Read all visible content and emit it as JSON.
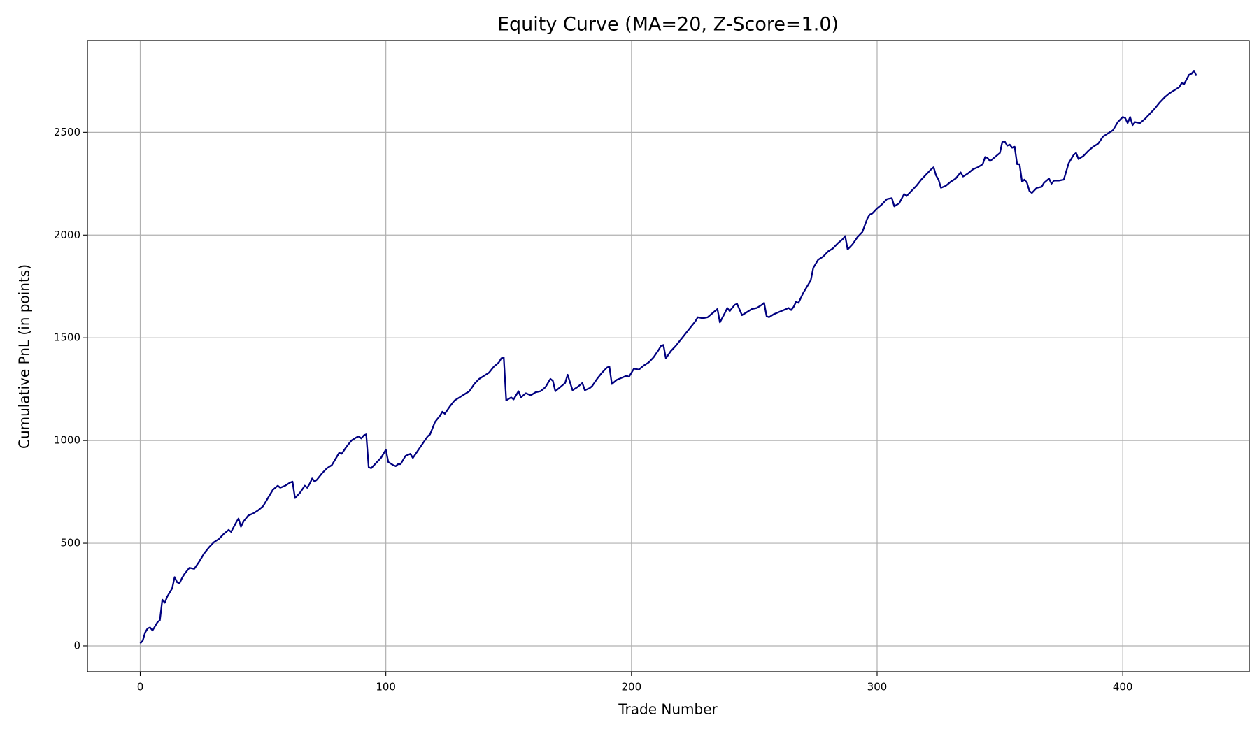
{
  "chart_data": {
    "type": "line",
    "title": "Equity Curve (MA=20, Z-Score=1.0)",
    "x_label": "Trade Number",
    "y_label": "Cumulative PnL (in points)",
    "color": "#000080",
    "grid": true,
    "xlim": [
      -21.5,
      451.5
    ],
    "ylim": [
      -126,
      2947
    ],
    "xticks": [
      0,
      100,
      200,
      300,
      400
    ],
    "yticks": [
      0,
      500,
      1000,
      1500,
      2000,
      2500
    ],
    "x": [
      0,
      1,
      2,
      3,
      4,
      5,
      6,
      7,
      8,
      9,
      10,
      11,
      12,
      13,
      14,
      15,
      16,
      17,
      18,
      19,
      20,
      22,
      24,
      26,
      28,
      30,
      32,
      34,
      36,
      37,
      39,
      40,
      41,
      42,
      44,
      46,
      48,
      50,
      52,
      54,
      56,
      57,
      59,
      61,
      62,
      63,
      65,
      67,
      68,
      69,
      70,
      71,
      72,
      74,
      76,
      78,
      80,
      81,
      82,
      84,
      86,
      88,
      89,
      90,
      91,
      92,
      93,
      94,
      96,
      98,
      100,
      101,
      103,
      104,
      105,
      106,
      108,
      110,
      111,
      113,
      115,
      117,
      118,
      120,
      122,
      123,
      124,
      126,
      128,
      130,
      132,
      134,
      136,
      138,
      140,
      142,
      144,
      146,
      147,
      148,
      149,
      151,
      152,
      154,
      155,
      157,
      159,
      161,
      163,
      165,
      167,
      168,
      169,
      171,
      173,
      174,
      176,
      178,
      180,
      181,
      183,
      184,
      186,
      188,
      190,
      191,
      192,
      194,
      196,
      198,
      199,
      201,
      203,
      205,
      207,
      209,
      211,
      212,
      213,
      214,
      216,
      218,
      220,
      222,
      224,
      226,
      227,
      229,
      231,
      233,
      235,
      236,
      238,
      239,
      240,
      242,
      243,
      245,
      247,
      249,
      251,
      253,
      254,
      255,
      256,
      258,
      260,
      262,
      264,
      265,
      266,
      267,
      268,
      270,
      272,
      273,
      274,
      276,
      278,
      280,
      282,
      284,
      286,
      287,
      288,
      290,
      292,
      294,
      296,
      297,
      298,
      300,
      302,
      304,
      306,
      307,
      309,
      311,
      312,
      314,
      316,
      318,
      320,
      322,
      323,
      324,
      325,
      326,
      328,
      330,
      332,
      334,
      335,
      337,
      339,
      341,
      343,
      344,
      345,
      346,
      348,
      350,
      351,
      352,
      353,
      354,
      355,
      356,
      357,
      358,
      359,
      360,
      361,
      362,
      363,
      365,
      367,
      368,
      370,
      371,
      372,
      374,
      376,
      378,
      380,
      381,
      382,
      384,
      386,
      388,
      390,
      392,
      394,
      396,
      398,
      400,
      401,
      402,
      403,
      404,
      405,
      407,
      409,
      411,
      413,
      415,
      417,
      419,
      421,
      423,
      424,
      425,
      427,
      428,
      429,
      430
    ],
    "values": [
      12,
      25,
      65,
      85,
      90,
      75,
      95,
      115,
      125,
      225,
      210,
      240,
      260,
      280,
      335,
      310,
      305,
      330,
      350,
      365,
      380,
      375,
      410,
      450,
      480,
      505,
      520,
      545,
      565,
      555,
      600,
      620,
      580,
      605,
      635,
      645,
      660,
      680,
      720,
      760,
      780,
      770,
      780,
      795,
      800,
      720,
      745,
      780,
      770,
      790,
      815,
      800,
      810,
      840,
      865,
      880,
      920,
      940,
      935,
      970,
      1000,
      1015,
      1020,
      1010,
      1025,
      1030,
      870,
      865,
      890,
      915,
      955,
      895,
      880,
      875,
      885,
      885,
      925,
      935,
      915,
      950,
      985,
      1020,
      1030,
      1090,
      1120,
      1140,
      1130,
      1165,
      1195,
      1210,
      1225,
      1240,
      1275,
      1300,
      1315,
      1330,
      1360,
      1380,
      1400,
      1405,
      1195,
      1210,
      1200,
      1240,
      1210,
      1230,
      1220,
      1235,
      1240,
      1260,
      1300,
      1290,
      1240,
      1260,
      1280,
      1320,
      1245,
      1260,
      1280,
      1245,
      1255,
      1265,
      1300,
      1330,
      1355,
      1360,
      1275,
      1295,
      1305,
      1315,
      1310,
      1350,
      1345,
      1365,
      1380,
      1405,
      1440,
      1460,
      1465,
      1400,
      1435,
      1460,
      1490,
      1520,
      1550,
      1580,
      1600,
      1595,
      1600,
      1620,
      1640,
      1575,
      1620,
      1645,
      1630,
      1660,
      1665,
      1610,
      1625,
      1640,
      1645,
      1660,
      1670,
      1605,
      1600,
      1615,
      1625,
      1635,
      1645,
      1635,
      1650,
      1675,
      1670,
      1720,
      1760,
      1780,
      1840,
      1880,
      1895,
      1920,
      1935,
      1960,
      1980,
      1995,
      1930,
      1955,
      1990,
      2015,
      2080,
      2100,
      2105,
      2130,
      2150,
      2175,
      2180,
      2140,
      2155,
      2200,
      2190,
      2215,
      2240,
      2270,
      2295,
      2320,
      2330,
      2290,
      2270,
      2230,
      2240,
      2260,
      2275,
      2305,
      2285,
      2300,
      2320,
      2330,
      2345,
      2380,
      2375,
      2360,
      2380,
      2400,
      2455,
      2455,
      2435,
      2440,
      2425,
      2430,
      2345,
      2345,
      2260,
      2270,
      2255,
      2215,
      2205,
      2230,
      2235,
      2255,
      2275,
      2250,
      2265,
      2265,
      2270,
      2350,
      2390,
      2400,
      2370,
      2385,
      2410,
      2430,
      2445,
      2480,
      2495,
      2510,
      2550,
      2575,
      2570,
      2545,
      2575,
      2535,
      2550,
      2545,
      2565,
      2590,
      2615,
      2645,
      2670,
      2690,
      2705,
      2720,
      2740,
      2735,
      2780,
      2785,
      2800,
      2775
    ]
  }
}
